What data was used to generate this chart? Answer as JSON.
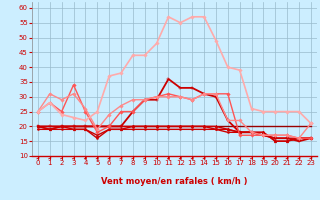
{
  "title": "",
  "xlabel": "Vent moyen/en rafales ( km/h )",
  "ylabel": "",
  "xlim": [
    -0.5,
    23.5
  ],
  "ylim": [
    10,
    62
  ],
  "yticks": [
    10,
    15,
    20,
    25,
    30,
    35,
    40,
    45,
    50,
    55,
    60
  ],
  "xticks": [
    0,
    1,
    2,
    3,
    4,
    5,
    6,
    7,
    8,
    9,
    10,
    11,
    12,
    13,
    14,
    15,
    16,
    17,
    18,
    19,
    20,
    21,
    22,
    23
  ],
  "bg_color": "#cceeff",
  "grid_color": "#99bbcc",
  "series": [
    {
      "x": [
        0,
        1,
        2,
        3,
        4,
        5,
        6,
        7,
        8,
        9,
        10,
        11,
        12,
        13,
        14,
        15,
        16,
        17,
        18,
        19,
        20,
        21,
        22,
        23
      ],
      "y": [
        20,
        20,
        20,
        20,
        20,
        20,
        20,
        20,
        20,
        20,
        20,
        20,
        20,
        20,
        20,
        20,
        20,
        20,
        20,
        20,
        20,
        20,
        20,
        20
      ],
      "color": "#990000",
      "lw": 1.0,
      "marker": null,
      "ms": 0
    },
    {
      "x": [
        0,
        1,
        2,
        3,
        4,
        5,
        6,
        7,
        8,
        9,
        10,
        11,
        12,
        13,
        14,
        15,
        16,
        17,
        18,
        19,
        20,
        21,
        22,
        23
      ],
      "y": [
        20,
        19,
        19,
        19,
        19,
        16,
        19,
        19,
        19,
        19,
        19,
        19,
        19,
        19,
        19,
        19,
        18,
        18,
        18,
        18,
        15,
        15,
        16,
        16
      ],
      "color": "#cc0000",
      "lw": 1.0,
      "marker": "o",
      "ms": 1.5
    },
    {
      "x": [
        0,
        1,
        2,
        3,
        4,
        5,
        6,
        7,
        8,
        9,
        10,
        11,
        12,
        13,
        14,
        15,
        16,
        17,
        18,
        19,
        20,
        21,
        22,
        23
      ],
      "y": [
        20,
        19,
        20,
        19,
        19,
        17,
        19,
        19,
        20,
        20,
        20,
        20,
        20,
        20,
        20,
        20,
        19,
        18,
        18,
        18,
        15,
        15,
        16,
        16
      ],
      "color": "#cc0000",
      "lw": 1.0,
      "marker": "^",
      "ms": 2
    },
    {
      "x": [
        0,
        1,
        2,
        3,
        4,
        5,
        6,
        7,
        8,
        9,
        10,
        11,
        12,
        13,
        14,
        15,
        16,
        17,
        18,
        19,
        20,
        21,
        22,
        23
      ],
      "y": [
        19,
        19,
        20,
        20,
        20,
        20,
        20,
        20,
        20,
        20,
        20,
        20,
        20,
        20,
        20,
        19,
        19,
        18,
        18,
        17,
        16,
        16,
        16,
        16
      ],
      "color": "#cc0000",
      "lw": 1.0,
      "marker": "o",
      "ms": 1.5
    },
    {
      "x": [
        0,
        1,
        2,
        3,
        4,
        5,
        6,
        7,
        8,
        9,
        10,
        11,
        12,
        13,
        14,
        15,
        16,
        17,
        18,
        19,
        20,
        21,
        22,
        23
      ],
      "y": [
        20,
        20,
        20,
        20,
        20,
        20,
        20,
        20,
        25,
        29,
        29,
        36,
        33,
        33,
        31,
        30,
        22,
        18,
        18,
        17,
        16,
        16,
        15,
        16
      ],
      "color": "#cc0000",
      "lw": 1.3,
      "marker": "+",
      "ms": 3
    },
    {
      "x": [
        0,
        1,
        2,
        3,
        4,
        5,
        6,
        7,
        8,
        9,
        10,
        11,
        12,
        13,
        14,
        15,
        16,
        17,
        18,
        19,
        20,
        21,
        22,
        23
      ],
      "y": [
        25,
        28,
        25,
        34,
        25,
        18,
        20,
        25,
        25,
        29,
        30,
        31,
        30,
        29,
        31,
        31,
        31,
        17,
        17,
        17,
        17,
        17,
        16,
        16
      ],
      "color": "#ff5555",
      "lw": 1.0,
      "marker": "D",
      "ms": 1.8
    },
    {
      "x": [
        0,
        1,
        2,
        3,
        4,
        5,
        6,
        7,
        8,
        9,
        10,
        11,
        12,
        13,
        14,
        15,
        16,
        17,
        18,
        19,
        20,
        21,
        22,
        23
      ],
      "y": [
        25,
        31,
        29,
        31,
        26,
        19,
        24,
        27,
        29,
        29,
        30,
        30,
        30,
        29,
        31,
        31,
        22,
        22,
        18,
        17,
        17,
        17,
        16,
        21
      ],
      "color": "#ff8888",
      "lw": 1.0,
      "marker": "D",
      "ms": 1.8
    },
    {
      "x": [
        0,
        1,
        2,
        3,
        4,
        5,
        6,
        7,
        8,
        9,
        10,
        11,
        12,
        13,
        14,
        15,
        16,
        17,
        18,
        19,
        20,
        21,
        22,
        23
      ],
      "y": [
        25,
        28,
        24,
        23,
        22,
        25,
        37,
        38,
        44,
        44,
        48,
        57,
        55,
        57,
        57,
        49,
        40,
        39,
        26,
        25,
        25,
        25,
        25,
        21
      ],
      "color": "#ffaaaa",
      "lw": 1.2,
      "marker": "D",
      "ms": 1.8
    }
  ],
  "arrow_color": "#cc0000",
  "xlabel_color": "#cc0000",
  "xlabel_fontsize": 6,
  "tick_fontsize": 5
}
